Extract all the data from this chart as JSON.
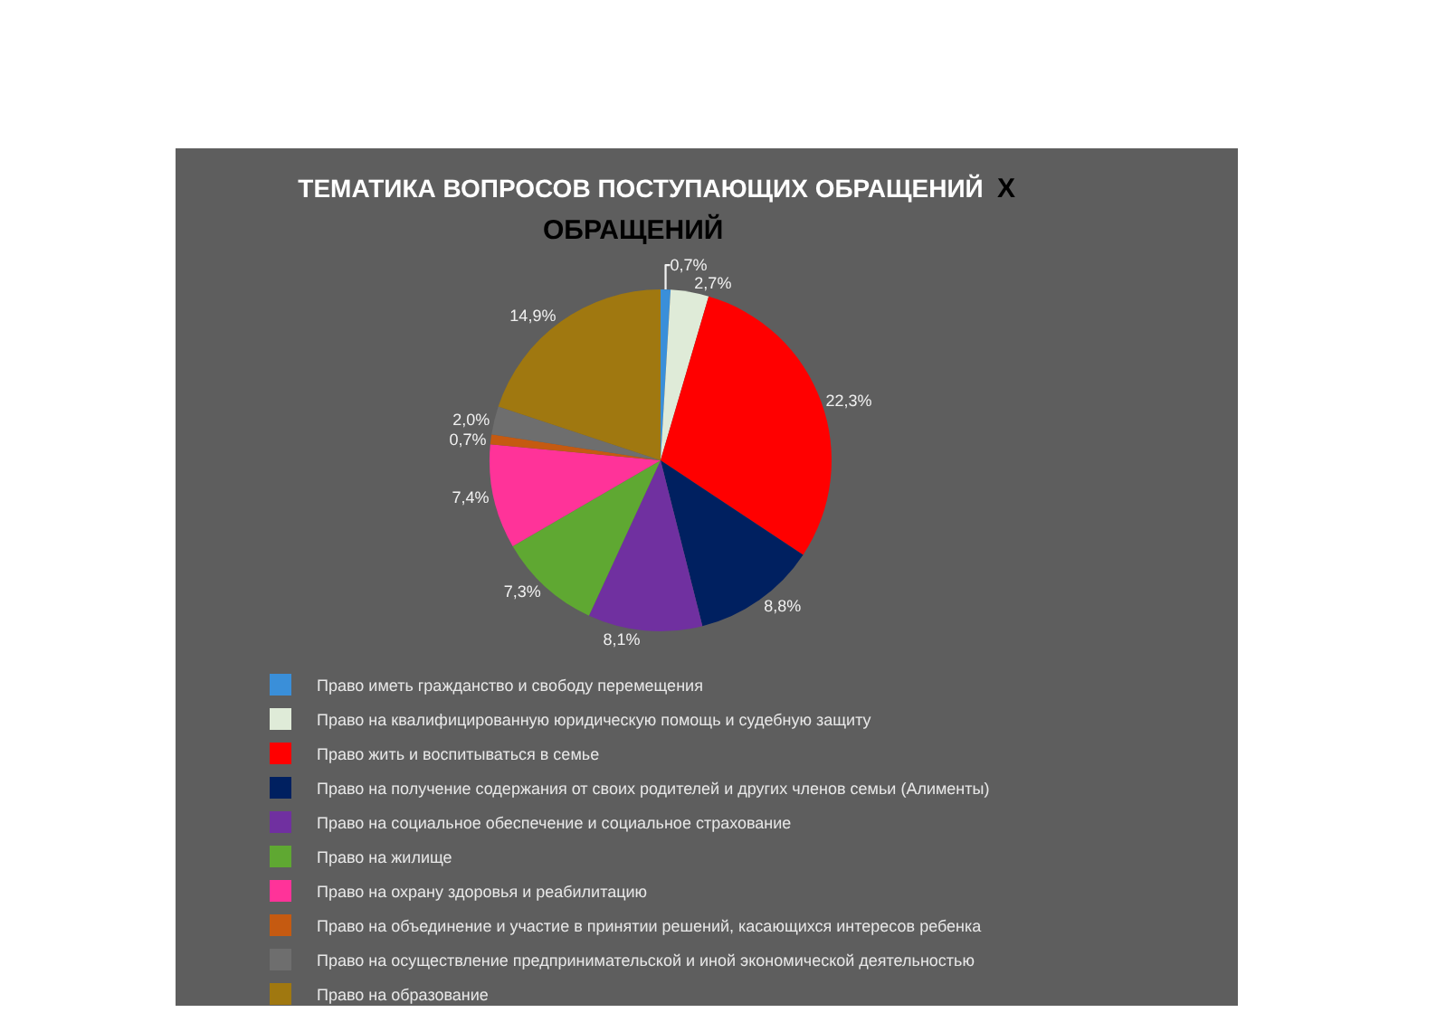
{
  "chart_data": {
    "type": "pie",
    "title": "ТЕМАТИКА ВОПРОСОВ ПОСТУПАЮЩИХ ОБРАЩЕНИЙ",
    "subtitle": "ОБРАЩЕНИЙ",
    "annotations": [
      "Х"
    ],
    "categories": [
      "Право иметь гражданство и свободу перемещения",
      "Право на квалифицированную юридическую помощь и судебную защиту",
      "Право жить и воспитываться в семье",
      "Право на получение содержания от своих родителей и других членов семьи (Алименты)",
      "Право на социальное обеспечение и социальное страхование",
      "Право на жилище",
      "Право на охрану здоровья и реабилитацию",
      "Право на объединение и участие в принятии решений, касающихся интересов ребенка",
      "Право на осуществление предпринимательской и иной экономической деятельностью",
      "Право на образование"
    ],
    "values": [
      0.7,
      2.7,
      22.3,
      8.8,
      8.1,
      7.3,
      7.4,
      0.7,
      2.0,
      14.9
    ],
    "value_labels": [
      "0,7%",
      "2,7%",
      "22,3%",
      "8,8%",
      "8,1%",
      "7,3%",
      "7,4%",
      "0,7%",
      "2,0%",
      "14,9%"
    ],
    "colors": [
      "#3a8fd9",
      "#dfebd8",
      "#ff0000",
      "#002060",
      "#7030a0",
      "#5fa832",
      "#ff3399",
      "#c55a11",
      "#6e6e6e",
      "#a07810"
    ],
    "legend": "bottom"
  }
}
